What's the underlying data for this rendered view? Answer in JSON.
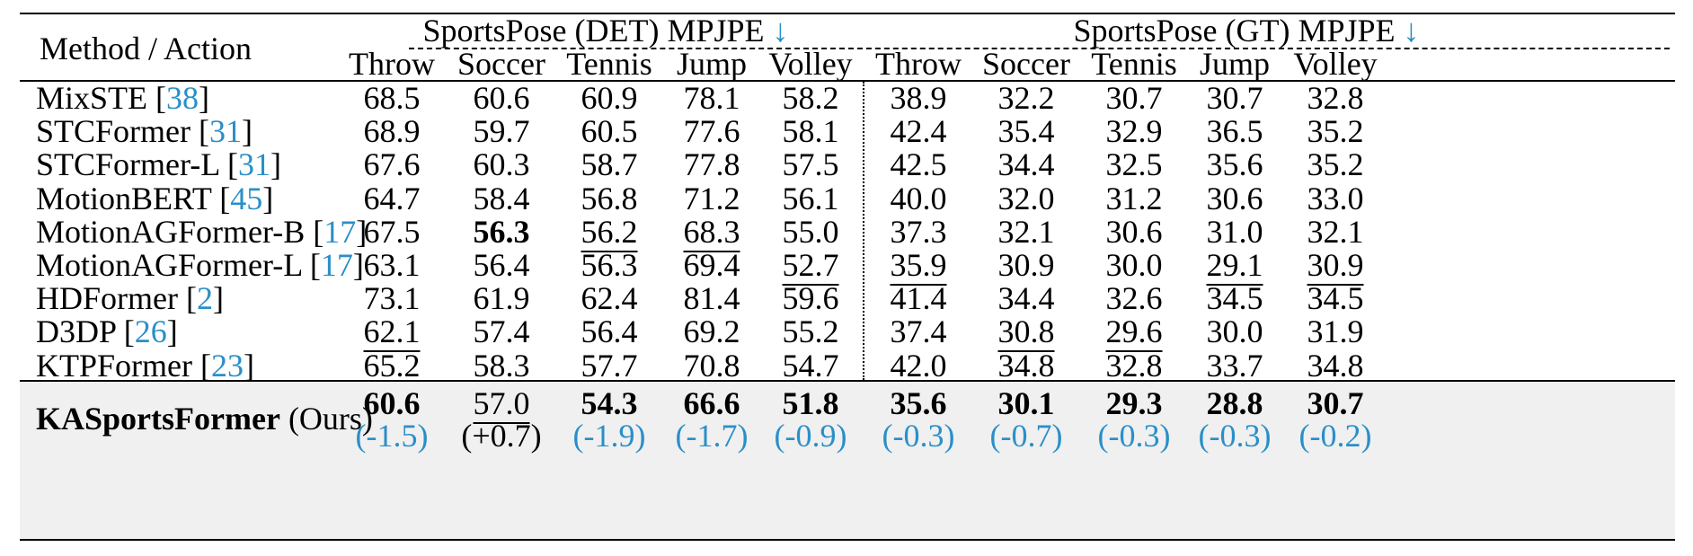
{
  "header": {
    "method_action": "Method / Action",
    "group_det": "SportsPose (DET) MPJPE",
    "group_gt": "SportsPose (GT) MPJPE",
    "arrow": "↓",
    "actions": [
      "Throw",
      "Soccer",
      "Tennis",
      "Jump",
      "Volley",
      "Throw",
      "Soccer",
      "Tennis",
      "Jump",
      "Volley"
    ]
  },
  "rows": [
    {
      "name": "MixSTE",
      "ref": "38",
      "values": [
        "68.5",
        "60.6",
        "60.9",
        "78.1",
        "58.2",
        "38.9",
        "32.2",
        "30.7",
        "30.7",
        "32.8"
      ],
      "underline": []
    },
    {
      "name": "STCFormer",
      "ref": "31",
      "values": [
        "68.9",
        "59.7",
        "60.5",
        "77.6",
        "58.1",
        "42.4",
        "35.4",
        "32.9",
        "36.5",
        "35.2"
      ],
      "underline": []
    },
    {
      "name": "STCFormer-L",
      "ref": "31",
      "values": [
        "67.6",
        "60.3",
        "58.7",
        "77.8",
        "57.5",
        "42.5",
        "34.4",
        "32.5",
        "35.6",
        "35.2"
      ],
      "underline": []
    },
    {
      "name": "MotionBERT",
      "ref": "45",
      "values": [
        "64.7",
        "58.4",
        "56.8",
        "71.2",
        "56.1",
        "40.0",
        "32.0",
        "31.2",
        "30.6",
        "33.0"
      ],
      "underline": []
    },
    {
      "name": "MotionAGFormer-B",
      "ref": "17",
      "values": [
        "67.5",
        "56.3",
        "56.2",
        "68.3",
        "55.0",
        "37.3",
        "32.1",
        "30.6",
        "31.0",
        "32.1"
      ],
      "underline": [
        2,
        3
      ],
      "bold": [
        1
      ]
    },
    {
      "name": "MotionAGFormer-L",
      "ref": "17",
      "values": [
        "63.1",
        "56.4",
        "56.3",
        "69.4",
        "52.7",
        "35.9",
        "30.9",
        "30.0",
        "29.1",
        "30.9"
      ],
      "underline": [
        4,
        5,
        8,
        9
      ]
    },
    {
      "name": "HDFormer",
      "ref": "2",
      "values": [
        "73.1",
        "61.9",
        "62.4",
        "81.4",
        "59.6",
        "41.4",
        "34.4",
        "32.6",
        "34.5",
        "34.5"
      ],
      "underline": []
    },
    {
      "name": "D3DP",
      "ref": "26",
      "values": [
        "62.1",
        "57.4",
        "56.4",
        "69.2",
        "55.2",
        "37.4",
        "30.8",
        "29.6",
        "30.0",
        "31.9"
      ],
      "underline": [
        0,
        6,
        7
      ]
    },
    {
      "name": "KTPFormer",
      "ref": "23",
      "values": [
        "65.2",
        "58.3",
        "57.7",
        "70.8",
        "54.7",
        "42.0",
        "34.8",
        "32.8",
        "33.7",
        "34.8"
      ],
      "underline": []
    }
  ],
  "ours": {
    "name": "KASportsFormer",
    "suffix": "(Ours)",
    "values": [
      "60.6",
      "57.0",
      "54.3",
      "66.6",
      "51.8",
      "35.6",
      "30.1",
      "29.3",
      "28.8",
      "30.7"
    ],
    "deltas": [
      "(-1.5)",
      "(+0.7)",
      "(-1.9)",
      "(-1.7)",
      "(-0.9)",
      "(-0.3)",
      "(-0.7)",
      "(-0.3)",
      "(-0.3)",
      "(-0.2)"
    ]
  },
  "colors": {
    "ref": "#2a8fc9",
    "shade": "#f0f0f0"
  }
}
